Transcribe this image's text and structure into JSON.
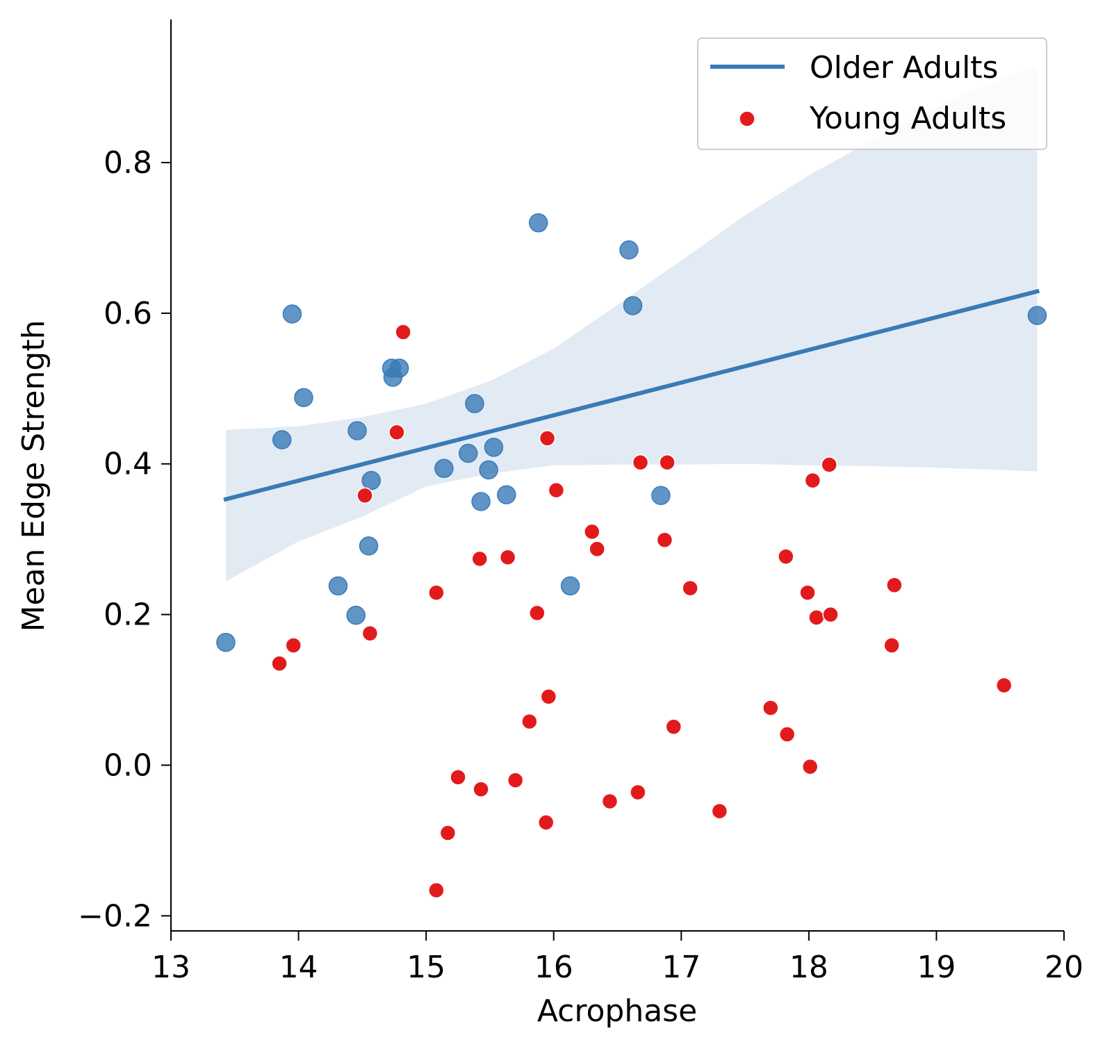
{
  "chart_data": {
    "type": "scatter",
    "xlabel": "Acrophase",
    "ylabel": "Mean Edge Strength",
    "xlim": [
      13,
      20
    ],
    "ylim": [
      -0.22,
      0.99
    ],
    "xticks": [
      13,
      14,
      15,
      16,
      17,
      18,
      19,
      20
    ],
    "xtick_labels": [
      "13",
      "14",
      "15",
      "16",
      "17",
      "18",
      "19",
      "20"
    ],
    "yticks": [
      -0.2,
      0.0,
      0.2,
      0.4,
      0.6,
      0.8
    ],
    "ytick_labels": [
      "−0.2",
      "0.0",
      "0.2",
      "0.4",
      "0.6",
      "0.8"
    ],
    "grid": false,
    "legend_position": "top-right",
    "legend": [
      {
        "label": "Older Adults",
        "marker": "line",
        "color": "#3a7ab7"
      },
      {
        "label": "Young Adults",
        "marker": "dot",
        "color": "#e31a1c"
      }
    ],
    "series": [
      {
        "name": "Older Adults",
        "kind": "scatter",
        "color": "#3a7ab7",
        "points": [
          [
            13.43,
            0.163
          ],
          [
            13.87,
            0.432
          ],
          [
            13.95,
            0.599
          ],
          [
            14.04,
            0.488
          ],
          [
            14.31,
            0.238
          ],
          [
            14.45,
            0.199
          ],
          [
            14.46,
            0.444
          ],
          [
            14.55,
            0.291
          ],
          [
            14.57,
            0.378
          ],
          [
            14.73,
            0.527
          ],
          [
            14.74,
            0.515
          ],
          [
            14.79,
            0.527
          ],
          [
            15.14,
            0.394
          ],
          [
            15.33,
            0.414
          ],
          [
            15.38,
            0.48
          ],
          [
            15.43,
            0.35
          ],
          [
            15.49,
            0.392
          ],
          [
            15.53,
            0.422
          ],
          [
            15.63,
            0.359
          ],
          [
            15.88,
            0.72
          ],
          [
            16.13,
            0.238
          ],
          [
            16.59,
            0.684
          ],
          [
            16.62,
            0.61
          ],
          [
            16.84,
            0.358
          ],
          [
            19.79,
            0.597
          ]
        ]
      },
      {
        "name": "Older Adults",
        "kind": "regression",
        "color": "#3a7ab7",
        "line": [
          [
            13.43,
            0.353
          ],
          [
            19.79,
            0.629
          ]
        ],
        "ci_band": {
          "x": [
            13.43,
            14.0,
            14.5,
            15.0,
            15.5,
            16.0,
            16.5,
            17.0,
            17.5,
            18.0,
            18.5,
            19.0,
            19.5,
            19.79
          ],
          "upper": [
            0.445,
            0.45,
            0.462,
            0.48,
            0.51,
            0.553,
            0.611,
            0.67,
            0.73,
            0.783,
            0.83,
            0.875,
            0.91,
            0.927
          ],
          "lower": [
            0.244,
            0.297,
            0.33,
            0.37,
            0.387,
            0.398,
            0.399,
            0.399,
            0.4,
            0.398,
            0.397,
            0.395,
            0.392,
            0.39
          ]
        }
      },
      {
        "name": "Young Adults",
        "kind": "scatter",
        "color": "#e31a1c",
        "points": [
          [
            13.85,
            0.135
          ],
          [
            13.96,
            0.159
          ],
          [
            14.52,
            0.358
          ],
          [
            14.56,
            0.175
          ],
          [
            14.77,
            0.442
          ],
          [
            14.82,
            0.575
          ],
          [
            15.08,
            0.229
          ],
          [
            15.08,
            -0.166
          ],
          [
            15.17,
            -0.09
          ],
          [
            15.25,
            -0.016
          ],
          [
            15.42,
            0.274
          ],
          [
            15.43,
            -0.032
          ],
          [
            15.64,
            0.276
          ],
          [
            15.7,
            -0.02
          ],
          [
            15.81,
            0.058
          ],
          [
            15.87,
            0.202
          ],
          [
            15.94,
            -0.076
          ],
          [
            15.95,
            0.434
          ],
          [
            15.96,
            0.091
          ],
          [
            16.02,
            0.365
          ],
          [
            16.3,
            0.31
          ],
          [
            16.34,
            0.287
          ],
          [
            16.44,
            -0.048
          ],
          [
            16.66,
            -0.036
          ],
          [
            16.68,
            0.402
          ],
          [
            16.87,
            0.299
          ],
          [
            16.89,
            0.402
          ],
          [
            16.94,
            0.051
          ],
          [
            17.07,
            0.235
          ],
          [
            17.3,
            -0.061
          ],
          [
            17.7,
            0.076
          ],
          [
            17.82,
            0.277
          ],
          [
            17.83,
            0.041
          ],
          [
            17.99,
            0.229
          ],
          [
            18.01,
            -0.002
          ],
          [
            18.03,
            0.378
          ],
          [
            18.06,
            0.196
          ],
          [
            18.16,
            0.399
          ],
          [
            18.17,
            0.2
          ],
          [
            18.65,
            0.159
          ],
          [
            18.67,
            0.239
          ],
          [
            19.53,
            0.106
          ]
        ]
      }
    ]
  }
}
